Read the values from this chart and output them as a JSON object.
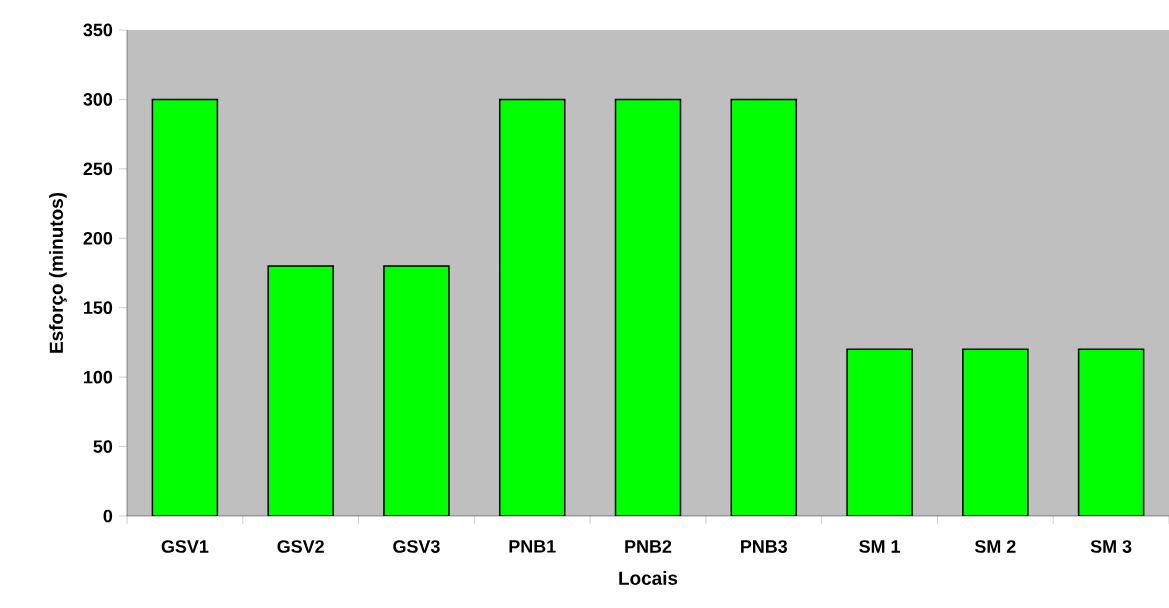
{
  "chart_data": {
    "type": "bar",
    "xlabel": "Locais",
    "ylabel": "Esforço (minutos)",
    "categories": [
      "GSV1",
      "GSV2",
      "GSV3",
      "PNB1",
      "PNB2",
      "PNB3",
      "SM 1",
      "SM 2",
      "SM 3"
    ],
    "values": [
      300,
      180,
      180,
      300,
      300,
      300,
      120,
      120,
      120
    ],
    "color": "#00ff00",
    "ylim": [
      0,
      350
    ],
    "yticks": [
      0,
      50,
      100,
      150,
      200,
      250,
      300,
      350
    ],
    "grid": false
  }
}
